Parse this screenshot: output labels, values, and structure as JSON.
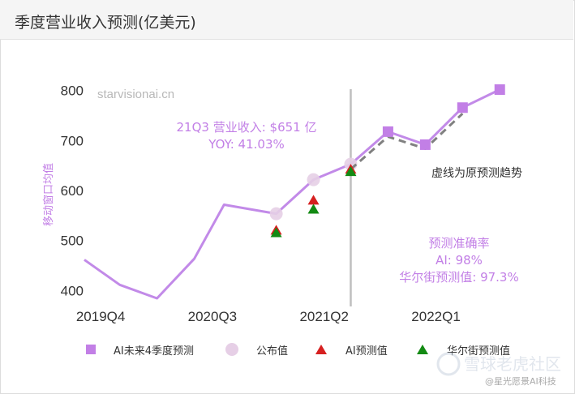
{
  "header": {
    "title": "季度营业收入预测(亿美元)"
  },
  "watermark": {
    "site": "starvisionai.cn",
    "brand": "雪球老虎社区",
    "handle": "@星光愿景AI科技"
  },
  "colors": {
    "ai_line": "#c28ae8",
    "ai_marker": "#c27fe6",
    "published": "#e6cfe6",
    "ai_triangle": "#d62020",
    "street_triangle": "#138a13",
    "dashed": "#808080",
    "divider": "#bfbfbf",
    "annotation": "#c27fe6",
    "axis_text": "#333333"
  },
  "chart_data": {
    "type": "line",
    "ylabel": "移动窗口均值",
    "ylim": [
      370,
      830
    ],
    "yticks": [
      400,
      500,
      600,
      700,
      800
    ],
    "x_labels": [
      {
        "x": 0,
        "label": "2019Q4"
      },
      {
        "x": 3,
        "label": "2020Q3"
      },
      {
        "x": 6,
        "label": "2021Q2"
      },
      {
        "x": 9,
        "label": "2022Q1"
      }
    ],
    "xlim": [
      -0.35,
      11.6
    ],
    "forecast_start_x": 6.8,
    "series": [
      {
        "name": "AI未来4季度预测",
        "kind": "line-with-square-markers",
        "line_x": [
          -0.35,
          0.6,
          1.6,
          2.6,
          3.4,
          4.8,
          5.8,
          6.8,
          7.8,
          8.8,
          9.8,
          10.8
        ],
        "line_y": [
          460,
          410,
          383,
          462,
          570,
          552,
          620,
          651,
          716,
          690,
          764,
          800
        ],
        "marker_x": [
          7.8,
          8.8,
          9.8,
          10.8
        ],
        "marker_y": [
          716,
          690,
          764,
          800
        ]
      },
      {
        "name": "公布值",
        "kind": "circle",
        "x": [
          4.8,
          5.8,
          6.8
        ],
        "y": [
          552,
          620,
          651
        ]
      },
      {
        "name": "AI预测值",
        "kind": "triangle",
        "x": [
          4.8,
          5.8,
          6.8
        ],
        "y": [
          520,
          580,
          642
        ]
      },
      {
        "name": "华尔街预测值",
        "kind": "triangle",
        "x": [
          4.8,
          5.8,
          6.8
        ],
        "y": [
          515,
          562,
          637
        ]
      },
      {
        "name": "虚线为原预测趋势",
        "kind": "dashed",
        "x": [
          6.8,
          7.8,
          8.8,
          9.8
        ],
        "y": [
          641,
          706,
          682,
          752
        ]
      }
    ],
    "annotations": {
      "q_line1": "21Q3 营业收入: $651 亿",
      "q_line2": "YOY: 41.03%",
      "dashed_note": "虚线为原预测趋势",
      "acc_title": "预测准确率",
      "acc_ai": "AI: 98%",
      "acc_street": "华尔街预测值: 97.3%"
    },
    "legend": [
      {
        "label": "AI未来4季度预测",
        "shape": "square"
      },
      {
        "label": "公布值",
        "shape": "circle"
      },
      {
        "label": "AI预测值",
        "shape": "triangle-red"
      },
      {
        "label": "华尔街预测值",
        "shape": "triangle-green"
      }
    ],
    "legend_position": "bottom"
  }
}
